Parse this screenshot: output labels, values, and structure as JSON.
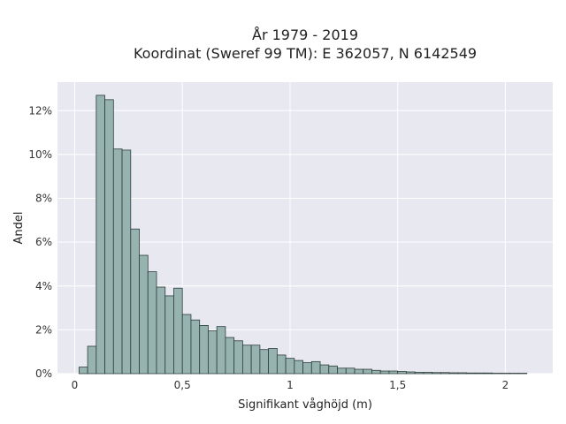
{
  "chart_data": {
    "type": "bar",
    "title": "År 1979 - 2019",
    "subtitle": "Koordinat (Sweref 99 TM): E 362057, N 6142549",
    "xlabel": "Signifikant våghöjd (m)",
    "ylabel": "Andel",
    "bin_width": 0.04,
    "bin_start": 0.02,
    "xlim": [
      -0.08,
      2.22
    ],
    "ylim": [
      0,
      13.3
    ],
    "x_ticks": [
      0,
      0.5,
      1,
      1.5,
      2
    ],
    "x_tick_labels": [
      "0",
      "0,5",
      "1",
      "1,5",
      "2"
    ],
    "y_ticks": [
      0,
      2,
      4,
      6,
      8,
      10,
      12
    ],
    "y_tick_labels": [
      "0%",
      "2%",
      "4%",
      "6%",
      "8%",
      "10%",
      "12%"
    ],
    "grid": true,
    "values": [
      0.3,
      1.25,
      12.7,
      12.5,
      10.25,
      10.2,
      6.6,
      5.4,
      4.65,
      3.95,
      3.55,
      3.9,
      2.7,
      2.45,
      2.2,
      1.95,
      2.15,
      1.65,
      1.5,
      1.3,
      1.3,
      1.1,
      1.15,
      0.85,
      0.7,
      0.6,
      0.5,
      0.55,
      0.4,
      0.35,
      0.25,
      0.25,
      0.2,
      0.2,
      0.15,
      0.12,
      0.12,
      0.1,
      0.08,
      0.06,
      0.06,
      0.05,
      0.05,
      0.04,
      0.04,
      0.03,
      0.03,
      0.03,
      0.02,
      0.02,
      0.02,
      0.02
    ],
    "colors": {
      "bar_fill": "#97b3b0",
      "bar_stroke": "#2e3e3c",
      "plot_background": "#e8e8f0",
      "grid": "#ffffff"
    }
  }
}
